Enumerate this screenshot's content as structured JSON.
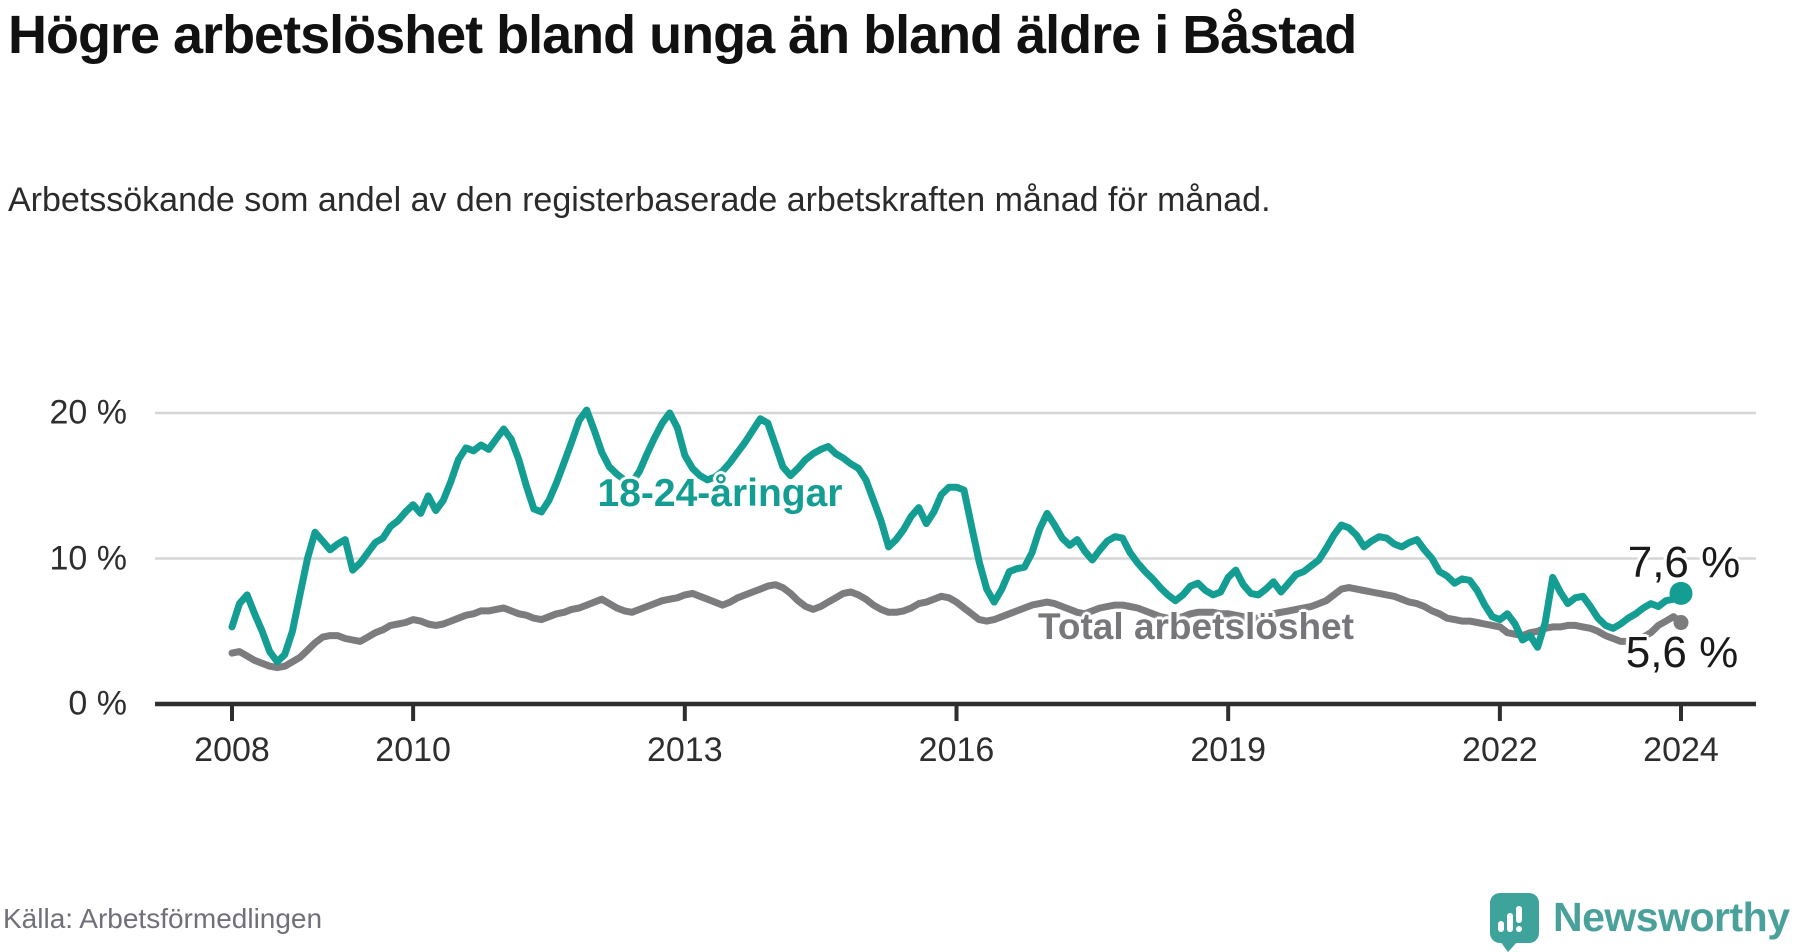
{
  "title": "Högre arbetslöshet bland unga än bland äldre i Båstad",
  "subtitle": "Arbetssökande som andel av den registerbaserade arbetskraften månad för månad.",
  "source": "Källa: Arbetsförmedlingen",
  "brand": {
    "name": "Newsworthy",
    "badge_color": "#3ea49b",
    "text_color": "#4aa19b"
  },
  "colors": {
    "young_line": "#149d92",
    "total_line": "#7c7c7f",
    "gridline": "#d6d6d6",
    "axis": "#2e2e2e",
    "text_dark": "#111111"
  },
  "chart_data": {
    "type": "line",
    "x_unit": "year-month",
    "x_start": "2008-01",
    "x_end": "2024-01",
    "frequency": "monthly",
    "x_ticks": [
      2008,
      2010,
      2013,
      2016,
      2019,
      2022,
      2024
    ],
    "x_tick_labels": [
      "2008",
      "2010",
      "2013",
      "2016",
      "2019",
      "2022",
      "2024"
    ],
    "y_ticks": [
      0,
      10,
      20
    ],
    "y_tick_labels": [
      "0 %",
      "10 %",
      "20 %"
    ],
    "ylim": [
      0,
      21.5
    ],
    "grid": "horizontal",
    "legend": "inline-labels",
    "series": [
      {
        "name": "18-24-åringar",
        "color": "#149d92",
        "end_label": "7,6 %",
        "end_value": 7.6,
        "marker_end": true,
        "values": [
          5.3,
          6.9,
          7.5,
          6.2,
          5.0,
          3.6,
          2.9,
          3.4,
          5.0,
          7.5,
          10.0,
          11.8,
          11.2,
          10.6,
          11.0,
          11.3,
          9.2,
          9.7,
          10.4,
          11.1,
          11.4,
          12.2,
          12.6,
          13.2,
          13.7,
          13.1,
          14.3,
          13.3,
          14.0,
          15.3,
          16.8,
          17.6,
          17.4,
          17.8,
          17.5,
          18.2,
          18.9,
          18.2,
          16.8,
          15.0,
          13.4,
          13.2,
          14.0,
          15.2,
          16.6,
          18.0,
          19.5,
          20.2,
          18.8,
          17.3,
          16.3,
          15.8,
          15.4,
          15.2,
          16.0,
          17.2,
          18.3,
          19.3,
          20.0,
          19.0,
          17.1,
          16.2,
          15.7,
          15.4,
          15.6,
          16.0,
          16.6,
          17.3,
          18.0,
          18.8,
          19.6,
          19.3,
          17.8,
          16.3,
          15.7,
          16.2,
          16.8,
          17.2,
          17.5,
          17.7,
          17.2,
          16.9,
          16.5,
          16.2,
          15.4,
          14.0,
          12.6,
          10.8,
          11.3,
          12.0,
          12.9,
          13.5,
          12.4,
          13.2,
          14.4,
          14.9,
          14.9,
          14.7,
          12.2,
          9.8,
          7.9,
          7.0,
          7.9,
          9.1,
          9.3,
          9.4,
          10.4,
          12.0,
          13.1,
          12.3,
          11.4,
          10.9,
          11.3,
          10.5,
          9.9,
          10.6,
          11.2,
          11.5,
          11.4,
          10.4,
          9.7,
          9.1,
          8.6,
          8.0,
          7.5,
          7.1,
          7.5,
          8.1,
          8.3,
          7.8,
          7.5,
          7.7,
          8.7,
          9.2,
          8.2,
          7.6,
          7.5,
          7.9,
          8.4,
          7.7,
          8.3,
          8.9,
          9.1,
          9.5,
          9.9,
          10.7,
          11.6,
          12.3,
          12.1,
          11.6,
          10.8,
          11.2,
          11.5,
          11.4,
          11.0,
          10.8,
          11.1,
          11.3,
          10.6,
          10.0,
          9.1,
          8.8,
          8.3,
          8.6,
          8.5,
          7.8,
          6.8,
          6.0,
          5.8,
          6.2,
          5.5,
          4.4,
          4.7,
          3.9,
          5.6,
          8.7,
          7.7,
          6.9,
          7.3,
          7.4,
          6.7,
          5.9,
          5.4,
          5.2,
          5.5,
          5.9,
          6.2,
          6.6,
          6.9,
          6.7,
          7.1,
          7.2,
          7.6
        ]
      },
      {
        "name": "Total arbetslöshet",
        "color": "#7c7c7f",
        "end_label": "5,6 %",
        "end_value": 5.6,
        "marker_end": true,
        "values": [
          3.5,
          3.6,
          3.3,
          3.0,
          2.8,
          2.6,
          2.5,
          2.6,
          2.9,
          3.2,
          3.7,
          4.2,
          4.6,
          4.7,
          4.7,
          4.5,
          4.4,
          4.3,
          4.6,
          4.9,
          5.1,
          5.4,
          5.5,
          5.6,
          5.8,
          5.7,
          5.5,
          5.4,
          5.5,
          5.7,
          5.9,
          6.1,
          6.2,
          6.4,
          6.4,
          6.5,
          6.6,
          6.4,
          6.2,
          6.1,
          5.9,
          5.8,
          6.0,
          6.2,
          6.3,
          6.5,
          6.6,
          6.8,
          7.0,
          7.2,
          6.9,
          6.6,
          6.4,
          6.3,
          6.5,
          6.7,
          6.9,
          7.1,
          7.2,
          7.3,
          7.5,
          7.6,
          7.4,
          7.2,
          7.0,
          6.8,
          7.0,
          7.3,
          7.5,
          7.7,
          7.9,
          8.1,
          8.2,
          8.0,
          7.6,
          7.1,
          6.7,
          6.5,
          6.7,
          7.0,
          7.3,
          7.6,
          7.7,
          7.5,
          7.2,
          6.8,
          6.5,
          6.3,
          6.3,
          6.4,
          6.6,
          6.9,
          7.0,
          7.2,
          7.4,
          7.3,
          7.0,
          6.6,
          6.2,
          5.8,
          5.7,
          5.8,
          6.0,
          6.2,
          6.4,
          6.6,
          6.8,
          6.9,
          7.0,
          6.9,
          6.7,
          6.5,
          6.3,
          6.2,
          6.4,
          6.6,
          6.7,
          6.8,
          6.8,
          6.7,
          6.6,
          6.4,
          6.2,
          6.0,
          5.9,
          5.9,
          6.0,
          6.2,
          6.3,
          6.3,
          6.3,
          6.2,
          6.2,
          6.1,
          6.0,
          5.9,
          5.9,
          6.0,
          6.2,
          6.3,
          6.4,
          6.5,
          6.6,
          6.7,
          6.9,
          7.1,
          7.5,
          7.9,
          8.0,
          7.9,
          7.8,
          7.7,
          7.6,
          7.5,
          7.4,
          7.2,
          7.0,
          6.9,
          6.7,
          6.4,
          6.2,
          5.9,
          5.8,
          5.7,
          5.7,
          5.6,
          5.5,
          5.4,
          5.3,
          4.9,
          4.8,
          4.7,
          4.9,
          5.0,
          5.2,
          5.3,
          5.3,
          5.4,
          5.4,
          5.3,
          5.2,
          5.0,
          4.7,
          4.5,
          4.3,
          4.3,
          4.4,
          4.6,
          4.9,
          5.4,
          5.7,
          6.0,
          5.6
        ]
      }
    ]
  },
  "annotations": {
    "young_label": "18-24-åringar",
    "total_label": "Total arbetslöshet",
    "end_young": "7,6 %",
    "end_total": "5,6 %"
  }
}
